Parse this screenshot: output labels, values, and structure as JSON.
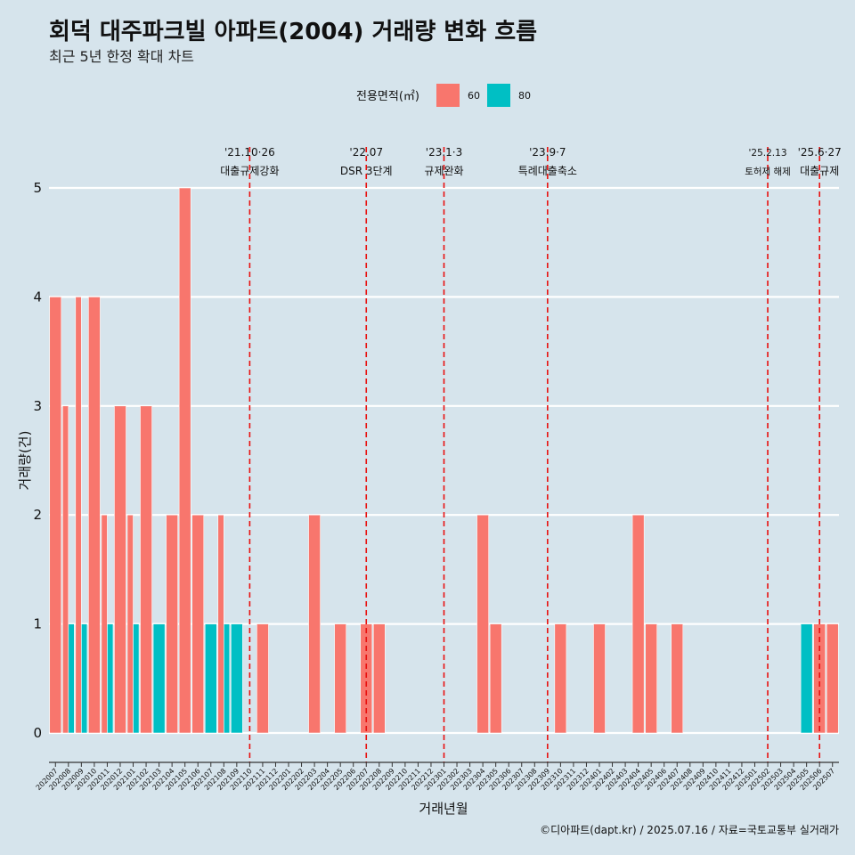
{
  "chart_data": {
    "type": "bar",
    "title": "회덕 대주파크빌 아파트(2004) 거래량 변화 흐름",
    "subtitle": "최근 5년 한정 확대 차트",
    "xlabel": "거래년월",
    "ylabel": "거래량(건)",
    "caption": "©디아파트(dapt.kr) / 2025.07.16 / 자료=국토교통부 실거래가",
    "legend": {
      "title": "전용면적(㎡)",
      "placement": "top"
    },
    "ylim": [
      0,
      5
    ],
    "yticks": [
      "0",
      "1",
      "2",
      "3",
      "4",
      "5"
    ],
    "grid": true,
    "categories": [
      "202007",
      "202008",
      "202009",
      "202010",
      "202011",
      "202012",
      "202101",
      "202102",
      "202103",
      "202104",
      "202105",
      "202106",
      "202107",
      "202108",
      "202109",
      "202110",
      "202111",
      "202112",
      "202201",
      "202202",
      "202203",
      "202204",
      "202205",
      "202206",
      "202207",
      "202208",
      "202209",
      "202210",
      "202211",
      "202212",
      "202301",
      "202302",
      "202303",
      "202304",
      "202305",
      "202306",
      "202307",
      "202308",
      "202309",
      "202310",
      "202311",
      "202312",
      "202401",
      "202402",
      "202403",
      "202404",
      "202405",
      "202406",
      "202407",
      "202408",
      "202409",
      "202410",
      "202411",
      "202412",
      "202501",
      "202502",
      "202503",
      "202504",
      "202505",
      "202506",
      "202507"
    ],
    "series": [
      {
        "name": "60",
        "color": "#f8766d",
        "values": [
          4,
          3,
          4,
          4,
          2,
          3,
          2,
          3,
          0,
          2,
          5,
          2,
          0,
          2,
          0,
          0,
          1,
          0,
          0,
          0,
          2,
          0,
          1,
          0,
          1,
          1,
          0,
          0,
          0,
          0,
          0,
          0,
          0,
          2,
          1,
          0,
          0,
          0,
          0,
          1,
          0,
          0,
          1,
          0,
          0,
          2,
          1,
          0,
          1,
          0,
          0,
          0,
          0,
          0,
          0,
          0,
          0,
          0,
          0,
          1,
          1
        ]
      },
      {
        "name": "80",
        "color": "#00bfc4",
        "values": [
          0,
          1,
          1,
          0,
          1,
          0,
          1,
          0,
          1,
          0,
          0,
          0,
          1,
          1,
          1,
          0,
          0,
          0,
          0,
          0,
          0,
          0,
          0,
          0,
          0,
          0,
          0,
          0,
          0,
          0,
          0,
          0,
          0,
          0,
          0,
          0,
          0,
          0,
          0,
          0,
          0,
          0,
          0,
          0,
          0,
          0,
          0,
          0,
          0,
          0,
          0,
          0,
          0,
          0,
          0,
          0,
          0,
          0,
          1,
          0,
          0
        ]
      }
    ],
    "events": [
      {
        "at": "202110",
        "date": "'21.10·26",
        "text": "대출규제강화",
        "small": false
      },
      {
        "at": "202207",
        "date": "'22.07",
        "text": "DSR 3단계",
        "small": false
      },
      {
        "at": "202301",
        "date": "'23.1·3",
        "text": "규제완화",
        "small": false
      },
      {
        "at": "202309",
        "date": "'23.9·7",
        "text": "특례대출축소",
        "small": false
      },
      {
        "at": "202502",
        "date": "'25.2.13",
        "text": "토허제 해제",
        "small": true
      },
      {
        "at": "202506",
        "date": "'25.6·27",
        "text": "대출규제",
        "small": false
      }
    ],
    "colors": {
      "background": "#d6e4ec",
      "grid": "#ffffff",
      "event_line": "#e8100f"
    }
  }
}
